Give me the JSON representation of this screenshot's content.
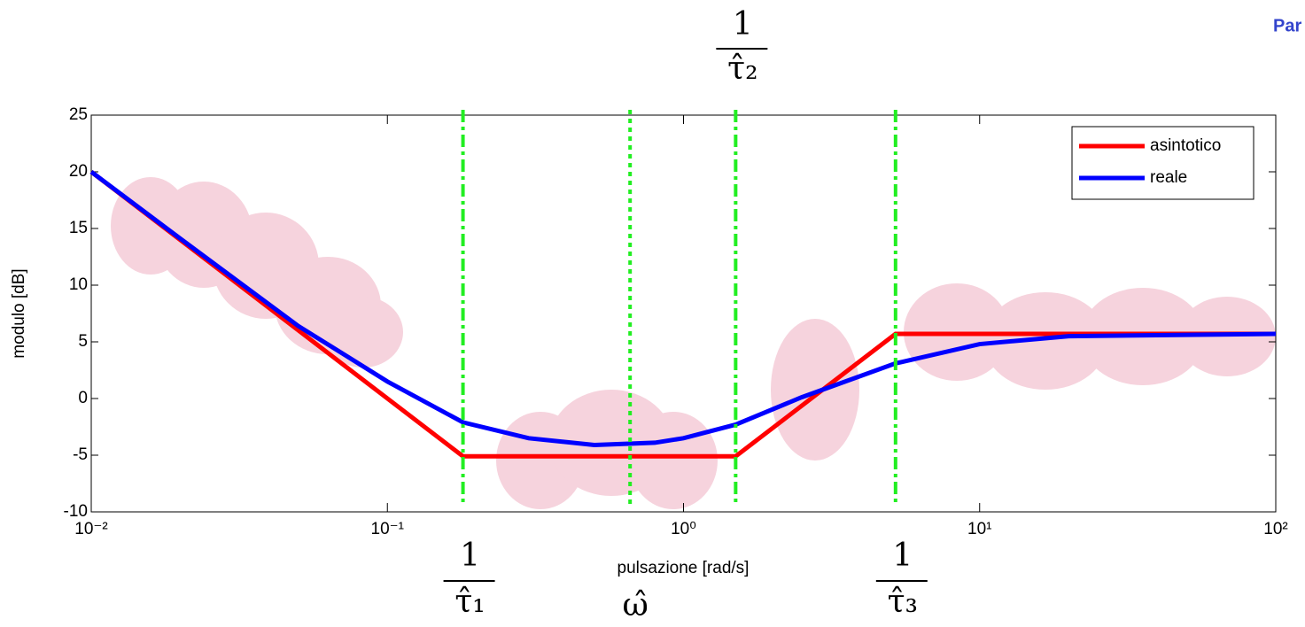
{
  "chart_data": {
    "type": "line",
    "x_scale": "log",
    "x_label": "pulsazione [rad/s]",
    "y_label": "modulo [dB]",
    "xlim": [
      0.01,
      100
    ],
    "ylim": [
      -10,
      25
    ],
    "xticks": [
      {
        "value": 0.01,
        "label": "10⁻²"
      },
      {
        "value": 0.1,
        "label": "10⁻¹"
      },
      {
        "value": 1,
        "label": "10⁰"
      },
      {
        "value": 10,
        "label": "10¹"
      },
      {
        "value": 100,
        "label": "10²"
      }
    ],
    "yticks": [
      25,
      20,
      15,
      10,
      5,
      0,
      -5,
      -10
    ],
    "grid": false,
    "legend": "upper right",
    "series": [
      {
        "name": "asintotico",
        "color": "#ff0000",
        "x": [
          0.01,
          0.18,
          1.5,
          5.2,
          100
        ],
        "values": [
          20,
          -5.1,
          -5.1,
          5.7,
          5.7
        ]
      },
      {
        "name": "reale",
        "color": "#0000ff",
        "x": [
          0.01,
          0.02,
          0.05,
          0.1,
          0.18,
          0.3,
          0.5,
          0.8,
          1,
          1.5,
          2.5,
          5.2,
          10,
          20,
          100
        ],
        "values": [
          20,
          14.1,
          6.4,
          1.5,
          -2.1,
          -3.5,
          -4.1,
          -3.9,
          -3.5,
          -2.3,
          0.1,
          3.1,
          4.8,
          5.5,
          5.7
        ]
      }
    ],
    "markers": [
      {
        "x": 0.18,
        "style": "dashdot",
        "position": "bottom",
        "numerator": "1",
        "denominator": "τ̂₁"
      },
      {
        "x": 0.66,
        "style": "dotted",
        "position": "bottom",
        "label": "ω̂"
      },
      {
        "x": 1.5,
        "style": "dashdot",
        "position": "top",
        "numerator": "1",
        "denominator": "τ̂₂"
      },
      {
        "x": 5.2,
        "style": "dashdot",
        "position": "bottom",
        "numerator": "1",
        "denominator": "τ̂₃"
      }
    ],
    "marker_color": "#22ee22",
    "corner_text": "Par"
  }
}
